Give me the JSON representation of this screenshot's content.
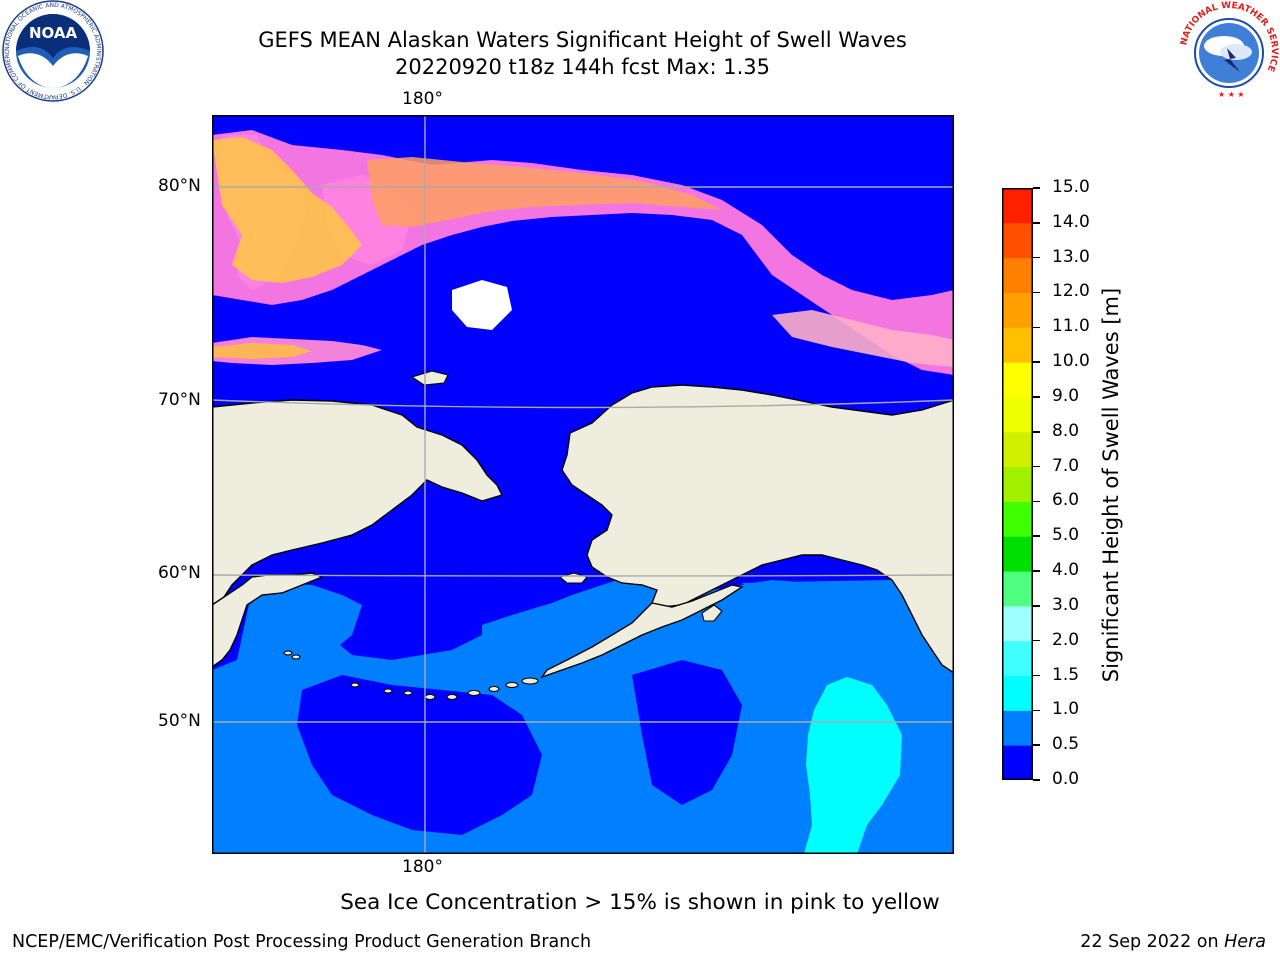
{
  "title": {
    "line1": "GEFS MEAN Alaskan Waters Significant Height of Swell Waves",
    "line2": "20220920 t18z 144h fcst   Max: 1.35"
  },
  "logos": {
    "noaa_text": "NOAA",
    "noaa_ring": "NATIONAL OCEANIC AND ATMOSPHERIC ADMINISTRATION · U.S. DEPARTMENT OF COMMERCE",
    "nws_ring": "NATIONAL WEATHER SERVICE"
  },
  "map": {
    "lat_labels": [
      "80°N",
      "70°N",
      "60°N",
      "50°N"
    ],
    "lon_label_top": "180°",
    "lon_label_bottom": "180°",
    "colors": {
      "land": "#eeedde",
      "ocean_low": "#0000ff",
      "ocean_mid": "#0080ff",
      "ocean_high": "#00ffff",
      "grid": "#aaaaaa"
    }
  },
  "colorbar": {
    "title": "Significant Height of Swell Waves [m]",
    "levels": [
      "0.0",
      "0.5",
      "1.0",
      "1.5",
      "2.0",
      "3.0",
      "4.0",
      "5.0",
      "6.0",
      "7.0",
      "8.0",
      "9.0",
      "10.0",
      "11.0",
      "12.0",
      "13.0",
      "14.0",
      "15.0"
    ],
    "colors": [
      "#0000ff",
      "#0080ff",
      "#00ffff",
      "#40ffff",
      "#a0ffff",
      "#50ff80",
      "#00e000",
      "#40ff00",
      "#a0f000",
      "#d0f000",
      "#f0ff00",
      "#ffff00",
      "#ffc000",
      "#ffa000",
      "#ff8000",
      "#ff5000",
      "#ff2000"
    ]
  },
  "footnote": "Sea Ice Concentration > 15% is shown in pink to yellow",
  "footer": {
    "left": "NCEP/EMC/Verification Post Processing Product Generation Branch",
    "right_prefix": "22 Sep 2022 on ",
    "right_host": "Hera"
  }
}
